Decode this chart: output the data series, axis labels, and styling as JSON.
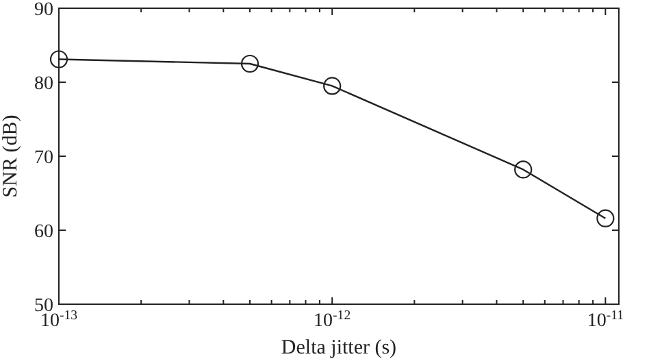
{
  "chart_data": {
    "type": "line",
    "xlabel": "Delta jitter (s)",
    "ylabel": "SNR (dB)",
    "log": "x",
    "x": [
      1e-13,
      5e-13,
      1e-12,
      5e-12,
      1e-11
    ],
    "series": [
      {
        "color": "#222222",
        "values": [
          83.1,
          82.5,
          79.5,
          68.2,
          61.6
        ]
      }
    ],
    "xlim": [
      1e-13,
      1.12e-11
    ],
    "xticks": [
      {
        "value": 1e-13,
        "label": "10$^{-13}$"
      },
      {
        "value": 2e-13,
        "label": null
      },
      {
        "value": 3e-13,
        "label": null
      },
      {
        "value": 4e-13,
        "label": null
      },
      {
        "value": 5e-13,
        "label": null
      },
      {
        "value": 6e-13,
        "label": null
      },
      {
        "value": 7e-13,
        "label": null
      },
      {
        "value": 8e-13,
        "label": null
      },
      {
        "value": 9e-13,
        "label": null
      },
      {
        "value": 1e-12,
        "label": "10$^{-12}$"
      },
      {
        "value": 2e-12,
        "label": null
      },
      {
        "value": 3e-12,
        "label": null
      },
      {
        "value": 4e-12,
        "label": null
      },
      {
        "value": 5e-12,
        "label": null
      },
      {
        "value": 6e-12,
        "label": null
      },
      {
        "value": 7e-12,
        "label": null
      },
      {
        "value": 8e-12,
        "label": null
      },
      {
        "value": 9e-12,
        "label": null
      },
      {
        "value": 1e-11,
        "label": "10$^{-11}$"
      }
    ],
    "ylim": [
      50,
      90
    ],
    "yticks": [
      50,
      60,
      70,
      80,
      90
    ],
    "marker": "circle",
    "line_style": "solid"
  }
}
